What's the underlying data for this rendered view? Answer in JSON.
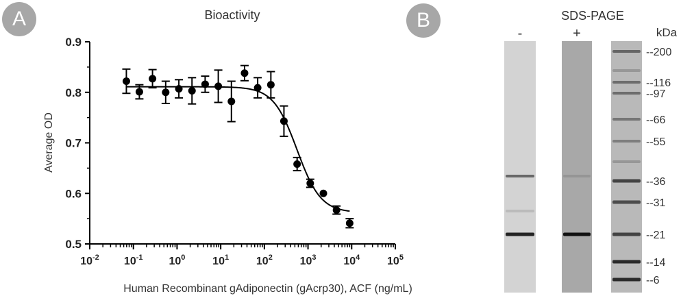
{
  "panel_labels": {
    "a": "A",
    "b": "B"
  },
  "chart_data": [
    {
      "type": "scatter",
      "title": "Bioactivity",
      "xlabel": "Human Recombinant gAdiponectin (gAcrp30), ACF (ng/mL)",
      "ylabel": "Average OD",
      "xscale": "log",
      "xlim": [
        0.01,
        100000
      ],
      "ylim": [
        0.5,
        0.9
      ],
      "xticks": [
        {
          "base": "10",
          "exp": "-2",
          "value": 0.01
        },
        {
          "base": "10",
          "exp": "-1",
          "value": 0.1
        },
        {
          "base": "10",
          "exp": "0",
          "value": 1
        },
        {
          "base": "10",
          "exp": "1",
          "value": 10
        },
        {
          "base": "10",
          "exp": "2",
          "value": 100
        },
        {
          "base": "10",
          "exp": "3",
          "value": 1000
        },
        {
          "base": "10",
          "exp": "4",
          "value": 10000
        },
        {
          "base": "10",
          "exp": "5",
          "value": 100000
        }
      ],
      "yticks": [
        "0.5",
        "0.6",
        "0.7",
        "0.8",
        "0.9"
      ],
      "grid": false,
      "series": [
        {
          "style": "points with error bars",
          "points": [
            {
              "x": 0.069,
              "y": 0.822,
              "err": 0.024
            },
            {
              "x": 0.137,
              "y": 0.801,
              "err": 0.014
            },
            {
              "x": 0.274,
              "y": 0.827,
              "err": 0.018
            },
            {
              "x": 0.549,
              "y": 0.8,
              "err": 0.022
            },
            {
              "x": 1.1,
              "y": 0.807,
              "err": 0.018
            },
            {
              "x": 2.2,
              "y": 0.803,
              "err": 0.026
            },
            {
              "x": 4.4,
              "y": 0.816,
              "err": 0.016
            },
            {
              "x": 8.8,
              "y": 0.812,
              "err": 0.032
            },
            {
              "x": 17.6,
              "y": 0.782,
              "err": 0.04
            },
            {
              "x": 35.2,
              "y": 0.838,
              "err": 0.015
            },
            {
              "x": 70.3,
              "y": 0.809,
              "err": 0.02
            },
            {
              "x": 141,
              "y": 0.815,
              "err": 0.026
            },
            {
              "x": 281,
              "y": 0.743,
              "err": 0.03
            },
            {
              "x": 563,
              "y": 0.658,
              "err": 0.013
            },
            {
              "x": 1125,
              "y": 0.62,
              "err": 0.008
            },
            {
              "x": 2250,
              "y": 0.6,
              "err": 0.0
            },
            {
              "x": 4500,
              "y": 0.567,
              "err": 0.008
            },
            {
              "x": 9000,
              "y": 0.541,
              "err": 0.009
            }
          ]
        },
        {
          "style": "fitted curve",
          "model": "4PL",
          "top": 0.811,
          "bottom": 0.562,
          "ec50": 560,
          "hill": 1.6,
          "x_range": [
            0.069,
            9000
          ]
        }
      ]
    }
  ],
  "gel": {
    "title": "SDS-PAGE",
    "unit": "kDa",
    "lanes": [
      {
        "label": "-",
        "background": "#d3d3d3",
        "bands": [
          {
            "kda": 36.9,
            "intensity": 0.55
          },
          {
            "kda": 21,
            "intensity": 0.9
          },
          {
            "kda": 28,
            "intensity": 0.12
          }
        ]
      },
      {
        "label": "+",
        "background": "#a8a8a8",
        "bands": [
          {
            "kda": 36.9,
            "intensity": 0.12
          },
          {
            "kda": 21,
            "intensity": 1.0
          }
        ]
      },
      {
        "label": "",
        "background": "#b9b9b9",
        "bands": [
          {
            "kda": 200,
            "intensity": 0.5
          },
          {
            "kda": 150,
            "intensity": 0.2
          },
          {
            "kda": 116,
            "intensity": 0.45
          },
          {
            "kda": 97,
            "intensity": 0.45
          },
          {
            "kda": 66,
            "intensity": 0.4
          },
          {
            "kda": 55,
            "intensity": 0.35
          },
          {
            "kda": 45,
            "intensity": 0.2
          },
          {
            "kda": 36,
            "intensity": 0.7
          },
          {
            "kda": 31,
            "intensity": 0.65
          },
          {
            "kda": 21,
            "intensity": 0.7
          },
          {
            "kda": 14,
            "intensity": 0.85
          },
          {
            "kda": 6,
            "intensity": 0.85
          }
        ]
      }
    ],
    "markers": [
      "200",
      "116",
      "97",
      "66",
      "55",
      "36",
      "31",
      "21",
      "14",
      "6"
    ],
    "marker_prefix": "--"
  },
  "colors": {
    "badge": "#a7a7a7",
    "marker": "#000000",
    "curve": "#000000"
  }
}
